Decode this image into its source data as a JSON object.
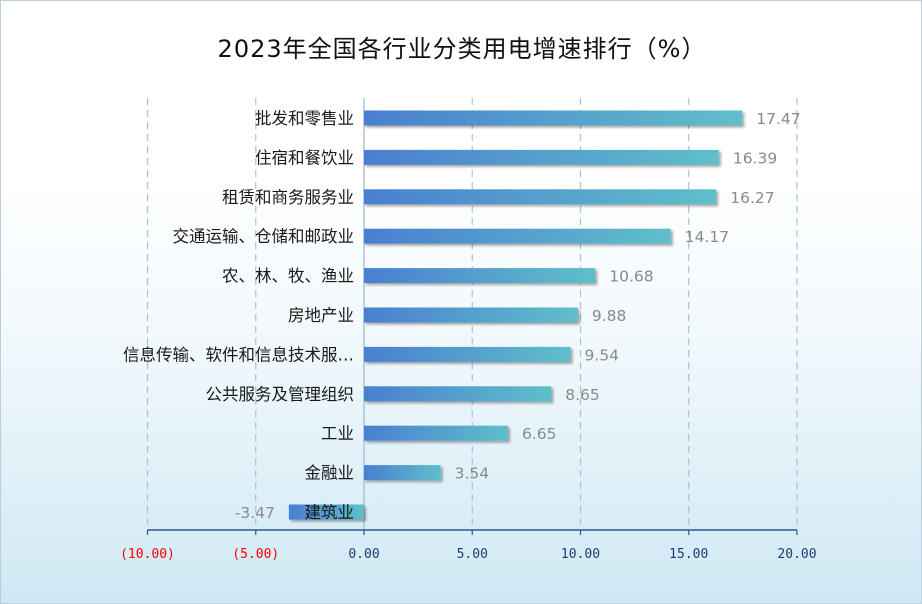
{
  "title": "2023年全国各行业分类用电增速排行（%）",
  "colors": {
    "bar_start": "#4a7fd0",
    "bar_end": "#5fbfca",
    "negative_tick": "#ff0000",
    "tick": "#1f3c72",
    "data_label": "#8a8a8a",
    "grid": "#a9c3d3"
  },
  "chart_data": {
    "type": "bar",
    "orientation": "horizontal",
    "title": "2023年全国各行业分类用电增速排行（%）",
    "xlabel": "",
    "ylabel": "",
    "xlim": [
      -10,
      20
    ],
    "grid": "vertical dashed",
    "categories": [
      "批发和零售业",
      "住宿和餐饮业",
      "租赁和商务服务业",
      "交通运输、仓储和邮政业",
      "农、林、牧、渔业",
      "房地产业",
      "信息传输、软件和信息技术服…",
      "公共服务及管理组织",
      "工业",
      "金融业",
      "建筑业"
    ],
    "values": [
      17.47,
      16.39,
      16.27,
      14.17,
      10.68,
      9.88,
      9.54,
      8.65,
      6.65,
      3.54,
      -3.47
    ],
    "value_labels": [
      "17.47",
      "16.39",
      "16.27",
      "14.17",
      "10.68",
      "9.88",
      "9.54",
      "8.65",
      "6.65",
      "3.54",
      "-3.47"
    ],
    "ticks": [
      -10,
      -5,
      0,
      5,
      10,
      15,
      20
    ],
    "tick_labels": [
      "(10.00)",
      "(5.00)",
      "0.00",
      "5.00",
      "10.00",
      "15.00",
      "20.00"
    ]
  }
}
